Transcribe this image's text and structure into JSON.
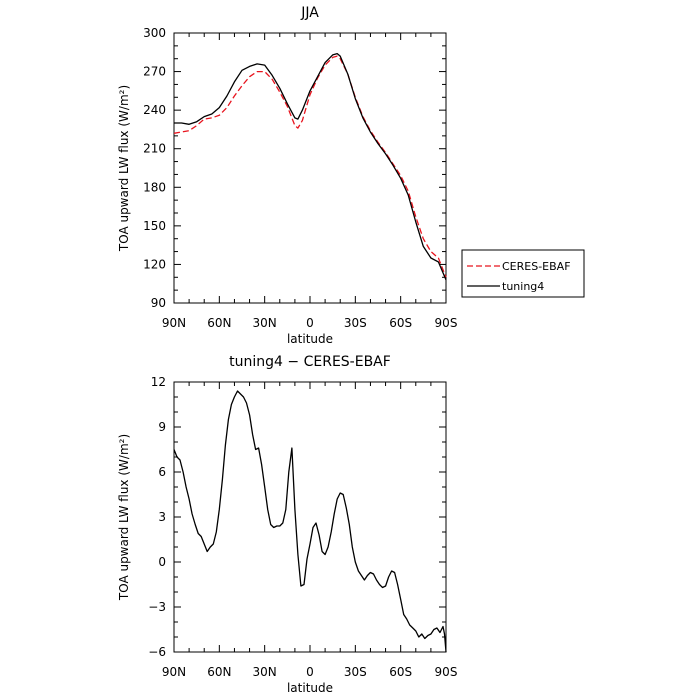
{
  "chart_data": [
    {
      "type": "line",
      "title": "JJA",
      "xlabel": "latitude",
      "ylabel": "TOA upward LW flux (W/m²)",
      "xlim": [
        90,
        -90
      ],
      "ylim": [
        90,
        300
      ],
      "x_ticks": [
        90,
        60,
        30,
        0,
        -30,
        -60,
        -90
      ],
      "x_tick_labels": [
        "90N",
        "60N",
        "30N",
        "0",
        "30S",
        "60S",
        "90S"
      ],
      "y_ticks": [
        90,
        120,
        150,
        180,
        210,
        240,
        270,
        300
      ],
      "y_tick_labels": [
        "90",
        "120",
        "150",
        "180",
        "210",
        "240",
        "270",
        "300"
      ],
      "grid": false,
      "legend": {
        "placement": "outside-right"
      },
      "series": [
        {
          "name": "CERES-EBAF",
          "color": "#e8141e",
          "dash": "dashed",
          "x": [
            90,
            85,
            80,
            75,
            70,
            65,
            60,
            55,
            50,
            45,
            40,
            35,
            30,
            25,
            20,
            15,
            10,
            8,
            5,
            0,
            -5,
            -10,
            -15,
            -18,
            -20,
            -25,
            -30,
            -35,
            -40,
            -45,
            -50,
            -55,
            -60,
            -65,
            -70,
            -75,
            -80,
            -85,
            -90
          ],
          "values": [
            222,
            223,
            224,
            228,
            233,
            234,
            236,
            242,
            251,
            259,
            266,
            270,
            270,
            264,
            254,
            243,
            228,
            226,
            232,
            252,
            265,
            275,
            281,
            282,
            280,
            268,
            250,
            235,
            224,
            215,
            207,
            198,
            189,
            177,
            157,
            140,
            130,
            125,
            110
          ]
        },
        {
          "name": "tuning4",
          "color": "#000000",
          "dash": "solid",
          "x": [
            90,
            85,
            80,
            75,
            70,
            65,
            60,
            55,
            50,
            45,
            40,
            35,
            30,
            25,
            20,
            15,
            10,
            8,
            5,
            0,
            -5,
            -10,
            -15,
            -18,
            -20,
            -25,
            -30,
            -35,
            -40,
            -45,
            -50,
            -55,
            -60,
            -65,
            -70,
            -75,
            -80,
            -85,
            -90
          ],
          "values": [
            230,
            230,
            229,
            231,
            235,
            237,
            242,
            251,
            262,
            271,
            274,
            276,
            275,
            267,
            257,
            245,
            234,
            233,
            240,
            255,
            266,
            277,
            283,
            284,
            282,
            268,
            249,
            234,
            223,
            214,
            206,
            197,
            187,
            174,
            153,
            134,
            125,
            122,
            108
          ]
        }
      ]
    },
    {
      "type": "line",
      "title": "tuning4 − CERES-EBAF",
      "xlabel": "latitude",
      "ylabel": "TOA upward LW flux (W/m²)",
      "xlim": [
        90,
        -90
      ],
      "ylim": [
        -6,
        12
      ],
      "x_ticks": [
        90,
        60,
        30,
        0,
        -30,
        -60,
        -90
      ],
      "x_tick_labels": [
        "90N",
        "60N",
        "30N",
        "0",
        "30S",
        "60S",
        "90S"
      ],
      "y_ticks": [
        -6,
        -3,
        0,
        3,
        6,
        9,
        12
      ],
      "y_tick_labels": [
        "−6",
        "−3",
        "0",
        "3",
        "6",
        "9",
        "12"
      ],
      "grid": false,
      "series": [
        {
          "color": "#000000",
          "x": [
            90,
            88,
            86,
            84,
            82,
            80,
            78,
            76,
            74,
            72,
            70,
            68,
            66,
            64,
            62,
            60,
            58,
            56,
            54,
            52,
            50,
            48,
            46,
            44,
            42,
            40,
            38,
            36,
            34,
            32,
            30,
            28,
            26,
            24,
            22,
            20,
            18,
            16,
            14,
            12,
            10,
            8,
            6,
            4,
            2,
            0,
            -2,
            -4,
            -6,
            -8,
            -10,
            -12,
            -14,
            -16,
            -18,
            -20,
            -22,
            -24,
            -26,
            -28,
            -30,
            -32,
            -34,
            -36,
            -38,
            -40,
            -42,
            -44,
            -46,
            -48,
            -50,
            -52,
            -54,
            -56,
            -58,
            -60,
            -62,
            -64,
            -66,
            -68,
            -70,
            -72,
            -74,
            -76,
            -78,
            -80,
            -82,
            -84,
            -86,
            -88,
            -89,
            -90
          ],
          "values": [
            7.5,
            7.0,
            6.8,
            6.0,
            5.0,
            4.2,
            3.2,
            2.5,
            1.9,
            1.7,
            1.2,
            0.7,
            1.0,
            1.2,
            2.0,
            3.5,
            5.5,
            7.8,
            9.5,
            10.5,
            11.0,
            11.4,
            11.2,
            11.0,
            10.6,
            9.8,
            8.5,
            7.5,
            7.6,
            6.5,
            5.0,
            3.5,
            2.5,
            2.3,
            2.4,
            2.4,
            2.6,
            3.5,
            6.0,
            7.6,
            3.5,
            0.5,
            -1.6,
            -1.5,
            0.2,
            1.2,
            2.3,
            2.6,
            1.8,
            0.7,
            0.5,
            1.0,
            2.0,
            3.2,
            4.2,
            4.6,
            4.5,
            3.6,
            2.5,
            1.0,
            0.0,
            -0.6,
            -0.9,
            -1.2,
            -0.9,
            -0.7,
            -0.8,
            -1.2,
            -1.5,
            -1.7,
            -1.6,
            -1.0,
            -0.6,
            -0.7,
            -1.5,
            -2.5,
            -3.5,
            -3.8,
            -4.2,
            -4.4,
            -4.6,
            -5.0,
            -4.8,
            -5.1,
            -4.9,
            -4.8,
            -4.5,
            -4.4,
            -4.7,
            -4.3,
            -4.8,
            -6.0
          ]
        }
      ]
    }
  ]
}
